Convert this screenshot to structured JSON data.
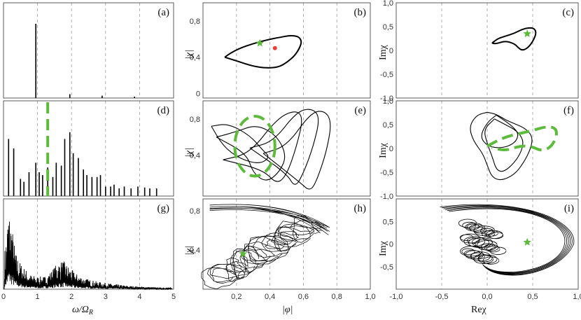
{
  "colors": {
    "curve": "#000000",
    "accent_green": "#5dbb3c",
    "accent_red": "#e8403a",
    "grid": "#9a9a9a",
    "frame": "#333333"
  },
  "labels": {
    "x_spectrum": "ω/Ω",
    "x_spectrum_sub": "R",
    "x_phi": "|φ|",
    "x_re": "Reχ",
    "y_chi": "|χ|",
    "y_im": "Imχ"
  },
  "chart_data": [
    {
      "id": "a",
      "letter": "(a)",
      "type": "bar",
      "col": 0,
      "row": 0,
      "xlim": [
        0,
        5
      ],
      "ylim": [
        0,
        1
      ],
      "xticks": [],
      "yticks": [],
      "grid_x": [
        1,
        2,
        3,
        4
      ],
      "lines": [
        [
          0.95,
          0.78
        ],
        [
          1.95,
          0.04
        ],
        [
          2.9,
          0.025
        ],
        [
          3.85,
          0.015
        ]
      ]
    },
    {
      "id": "d",
      "letter": "(d)",
      "type": "bar",
      "col": 0,
      "row": 1,
      "xlim": [
        0,
        5
      ],
      "ylim": [
        0,
        1
      ],
      "xticks": [],
      "yticks": [],
      "grid_x": [
        1,
        2,
        3,
        4
      ],
      "marker_x": 1.3,
      "lines": [
        [
          0.15,
          0.6
        ],
        [
          0.3,
          0.5
        ],
        [
          0.5,
          0.18
        ],
        [
          0.6,
          0.15
        ],
        [
          0.75,
          0.25
        ],
        [
          0.95,
          0.35
        ],
        [
          1.05,
          0.25
        ],
        [
          1.15,
          0.22
        ],
        [
          1.3,
          0.3
        ],
        [
          1.45,
          0.2
        ],
        [
          1.55,
          0.35
        ],
        [
          1.7,
          0.32
        ],
        [
          1.8,
          0.6
        ],
        [
          1.95,
          0.67
        ],
        [
          2.05,
          0.45
        ],
        [
          2.2,
          0.4
        ],
        [
          2.35,
          0.28
        ],
        [
          2.45,
          0.22
        ],
        [
          2.6,
          0.2
        ],
        [
          2.75,
          0.2
        ],
        [
          2.85,
          0.22
        ],
        [
          3.0,
          0.1
        ],
        [
          3.15,
          0.1
        ],
        [
          3.25,
          0.12
        ],
        [
          3.4,
          0.08
        ],
        [
          3.55,
          0.1
        ],
        [
          3.75,
          0.08
        ],
        [
          3.95,
          0.1
        ],
        [
          4.15,
          0.09
        ],
        [
          4.3,
          0.08
        ],
        [
          4.5,
          0.08
        ]
      ]
    },
    {
      "id": "g",
      "letter": "(g)",
      "type": "line",
      "col": 0,
      "row": 2,
      "xlim": [
        0,
        5
      ],
      "ylim": [
        0,
        1
      ],
      "xticks": [
        0,
        1,
        2,
        3,
        4,
        5
      ],
      "yticks": [],
      "grid_x": [
        1,
        2,
        3,
        4
      ],
      "envelope": [
        [
          0.05,
          0.45
        ],
        [
          0.15,
          0.92
        ],
        [
          0.25,
          0.7
        ],
        [
          0.35,
          0.42
        ],
        [
          0.45,
          0.32
        ],
        [
          0.6,
          0.24
        ],
        [
          0.8,
          0.16
        ],
        [
          1.0,
          0.14
        ],
        [
          1.2,
          0.14
        ],
        [
          1.4,
          0.2
        ],
        [
          1.6,
          0.3
        ],
        [
          1.75,
          0.32
        ],
        [
          1.9,
          0.26
        ],
        [
          2.1,
          0.18
        ],
        [
          2.4,
          0.12
        ],
        [
          2.8,
          0.08
        ],
        [
          3.2,
          0.06
        ],
        [
          3.6,
          0.04
        ],
        [
          4.0,
          0.03
        ],
        [
          4.5,
          0.02
        ],
        [
          4.9,
          0.015
        ]
      ]
    },
    {
      "id": "b",
      "letter": "(b)",
      "type": "line",
      "col": 1,
      "row": 0,
      "xlim": [
        0,
        1
      ],
      "ylim": [
        -0.05,
        1.0
      ],
      "xticks": [],
      "yticks": [
        0,
        0.4,
        0.8
      ],
      "grid_x": [
        0.2,
        0.4,
        0.6,
        0.8
      ],
      "curve": [
        [
          0.13,
          0.4
        ],
        [
          0.16,
          0.44
        ],
        [
          0.22,
          0.5
        ],
        [
          0.3,
          0.55
        ],
        [
          0.38,
          0.59
        ],
        [
          0.46,
          0.62
        ],
        [
          0.52,
          0.64
        ],
        [
          0.57,
          0.63
        ],
        [
          0.59,
          0.58
        ],
        [
          0.58,
          0.51
        ],
        [
          0.55,
          0.42
        ],
        [
          0.5,
          0.34
        ],
        [
          0.45,
          0.29
        ],
        [
          0.38,
          0.28
        ],
        [
          0.3,
          0.3
        ],
        [
          0.2,
          0.36
        ],
        [
          0.13,
          0.4
        ]
      ],
      "star": [
        0.34,
        0.555
      ],
      "dot": [
        0.43,
        0.5
      ]
    },
    {
      "id": "e",
      "letter": "(e)",
      "type": "line",
      "col": 1,
      "row": 1,
      "xlim": [
        0,
        1
      ],
      "ylim": [
        -0.05,
        1.0
      ],
      "xticks": [],
      "yticks": [
        0.4,
        0.8
      ],
      "grid_x": [
        0.2,
        0.4,
        0.6,
        0.8
      ],
      "loops": [
        [
          [
            0.05,
            0.72
          ],
          [
            0.15,
            0.75
          ],
          [
            0.28,
            0.62
          ],
          [
            0.36,
            0.45
          ],
          [
            0.4,
            0.38
          ],
          [
            0.34,
            0.3
          ],
          [
            0.22,
            0.36
          ],
          [
            0.12,
            0.5
          ],
          [
            0.05,
            0.72
          ]
        ],
        [
          [
            0.08,
            0.6
          ],
          [
            0.2,
            0.66
          ],
          [
            0.32,
            0.74
          ],
          [
            0.44,
            0.62
          ],
          [
            0.5,
            0.4
          ],
          [
            0.46,
            0.22
          ],
          [
            0.38,
            0.1
          ],
          [
            0.3,
            0.2
          ],
          [
            0.26,
            0.42
          ],
          [
            0.08,
            0.6
          ]
        ],
        [
          [
            0.12,
            0.35
          ],
          [
            0.28,
            0.42
          ],
          [
            0.44,
            0.8
          ],
          [
            0.55,
            0.9
          ],
          [
            0.6,
            0.82
          ],
          [
            0.56,
            0.5
          ],
          [
            0.5,
            0.18
          ],
          [
            0.44,
            0.08
          ],
          [
            0.36,
            0.24
          ],
          [
            0.12,
            0.35
          ]
        ],
        [
          [
            0.28,
            0.48
          ],
          [
            0.42,
            0.55
          ],
          [
            0.56,
            0.88
          ],
          [
            0.65,
            0.92
          ],
          [
            0.7,
            0.82
          ],
          [
            0.66,
            0.5
          ],
          [
            0.6,
            0.2
          ],
          [
            0.55,
            0.04
          ],
          [
            0.5,
            0.2
          ],
          [
            0.28,
            0.48
          ]
        ],
        [
          [
            0.36,
            0.42
          ],
          [
            0.5,
            0.5
          ],
          [
            0.64,
            0.86
          ],
          [
            0.72,
            0.9
          ],
          [
            0.77,
            0.78
          ],
          [
            0.74,
            0.45
          ],
          [
            0.68,
            0.12
          ],
          [
            0.64,
            0.0
          ],
          [
            0.58,
            0.1
          ],
          [
            0.36,
            0.42
          ]
        ]
      ],
      "ellipse": {
        "cx": 0.31,
        "cy": 0.5,
        "rx": 0.12,
        "ry": 0.33
      }
    },
    {
      "id": "h",
      "letter": "(h)",
      "type": "line",
      "col": 1,
      "row": 2,
      "xlim": [
        0,
        1
      ],
      "ylim": [
        0,
        0.92
      ],
      "xticks": [
        0.2,
        0.4,
        0.6,
        0.8,
        1.0
      ],
      "yticks": [
        0.4,
        0.8
      ],
      "grid_x": [
        0.2,
        0.4,
        0.6,
        0.8
      ],
      "star": [
        0.24,
        0.36
      ]
    },
    {
      "id": "c",
      "letter": "(c)",
      "type": "line",
      "col": 2,
      "row": 0,
      "xlim": [
        -1,
        1
      ],
      "ylim": [
        -1,
        1
      ],
      "xticks": [],
      "yticks": [
        -1.0,
        -0.5,
        0.0,
        0.5,
        1.0
      ],
      "grid_x": [
        -0.5,
        0,
        0.5
      ],
      "curve": [
        [
          0.07,
          0.18
        ],
        [
          0.12,
          0.25
        ],
        [
          0.2,
          0.3
        ],
        [
          0.3,
          0.36
        ],
        [
          0.38,
          0.44
        ],
        [
          0.46,
          0.48
        ],
        [
          0.52,
          0.46
        ],
        [
          0.54,
          0.36
        ],
        [
          0.5,
          0.18
        ],
        [
          0.44,
          0.04
        ],
        [
          0.38,
          0.0
        ],
        [
          0.34,
          0.06
        ],
        [
          0.3,
          0.14
        ],
        [
          0.2,
          0.2
        ],
        [
          0.1,
          0.14
        ],
        [
          0.05,
          0.15
        ],
        [
          0.07,
          0.18
        ]
      ],
      "star": [
        0.44,
        0.35
      ]
    },
    {
      "id": "f",
      "letter": "(f)",
      "type": "line",
      "col": 2,
      "row": 1,
      "xlim": [
        -1,
        1
      ],
      "ylim": [
        -1,
        1
      ],
      "xticks": [],
      "yticks": [
        -1.0,
        -0.5,
        0.0,
        0.5,
        1.0
      ],
      "grid_x": [
        -0.5,
        0,
        0.5
      ],
      "loops": [
        [
          [
            0.0,
            0.76
          ],
          [
            0.1,
            0.72
          ],
          [
            0.2,
            0.6
          ],
          [
            0.3,
            0.52
          ],
          [
            0.42,
            0.42
          ],
          [
            0.5,
            0.25
          ],
          [
            0.48,
            0.0
          ],
          [
            0.4,
            -0.3
          ],
          [
            0.3,
            -0.55
          ],
          [
            0.15,
            -0.68
          ],
          [
            0.05,
            -0.6
          ],
          [
            0.0,
            -0.35
          ],
          [
            -0.05,
            -0.1
          ],
          [
            -0.15,
            0.15
          ],
          [
            -0.2,
            0.45
          ],
          [
            -0.12,
            0.7
          ],
          [
            0.0,
            0.76
          ]
        ],
        [
          [
            0.08,
            0.62
          ],
          [
            0.2,
            0.5
          ],
          [
            0.32,
            0.38
          ],
          [
            0.4,
            0.18
          ],
          [
            0.38,
            -0.05
          ],
          [
            0.3,
            -0.3
          ],
          [
            0.18,
            -0.5
          ],
          [
            0.1,
            -0.45
          ],
          [
            0.06,
            -0.2
          ],
          [
            0.0,
            0.1
          ],
          [
            -0.04,
            0.4
          ],
          [
            0.08,
            0.62
          ]
        ],
        [
          [
            0.1,
            0.7
          ],
          [
            0.18,
            0.6
          ],
          [
            0.28,
            0.46
          ],
          [
            0.35,
            0.3
          ],
          [
            0.3,
            0.1
          ],
          [
            0.15,
            0.0
          ],
          [
            0.0,
            0.05
          ],
          [
            -0.08,
            0.25
          ],
          [
            0.0,
            0.55
          ],
          [
            0.1,
            0.7
          ]
        ]
      ],
      "dashed_curve": [
        [
          0.0,
          0.05
        ],
        [
          0.2,
          0.25
        ],
        [
          0.45,
          0.35
        ],
        [
          0.68,
          0.48
        ],
        [
          0.78,
          0.38
        ],
        [
          0.72,
          0.05
        ],
        [
          0.6,
          -0.06
        ],
        [
          0.48,
          0.05
        ],
        [
          0.35,
          0.05
        ],
        [
          0.2,
          -0.05
        ],
        [
          0.05,
          0.02
        ]
      ]
    },
    {
      "id": "i",
      "letter": "(i)",
      "type": "line",
      "col": 2,
      "row": 2,
      "xlim": [
        -1,
        1
      ],
      "ylim": [
        -1,
        1
      ],
      "xticks": [
        -1.0,
        -0.5,
        0.0,
        0.5,
        1.0
      ],
      "yticks": [
        -0.5,
        0.0,
        0.5
      ],
      "grid_x": [
        -0.5,
        0,
        0.5
      ],
      "star": [
        0.44,
        0.04
      ]
    }
  ]
}
